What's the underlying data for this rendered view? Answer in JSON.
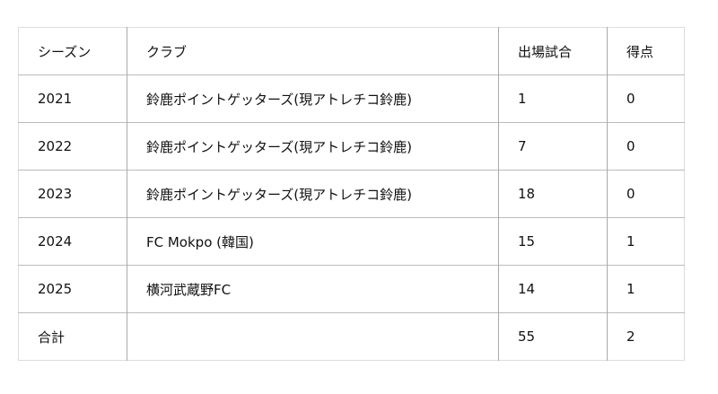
{
  "headers": [
    "シーズン",
    "クラブ",
    "出場試合",
    "得点"
  ],
  "rows": [
    [
      "2021",
      "鈴鹿ポイントゲッターズ(現アトレチコ鈴鹿)",
      "1",
      "0"
    ],
    [
      "2022",
      "鈴鹿ポイントゲッターズ(現アトレチコ鈴鹿)",
      "7",
      "0"
    ],
    [
      "2023",
      "鈴鹿ポイントゲッターズ(現アトレチコ鈴鹿)",
      "18",
      "0"
    ],
    [
      "2024",
      "FC Mokpo (韓国)",
      "15",
      "1"
    ],
    [
      "2025",
      "横河武蔵野FC",
      "14",
      "1"
    ],
    [
      "合計",
      "",
      "55",
      "2"
    ]
  ]
}
